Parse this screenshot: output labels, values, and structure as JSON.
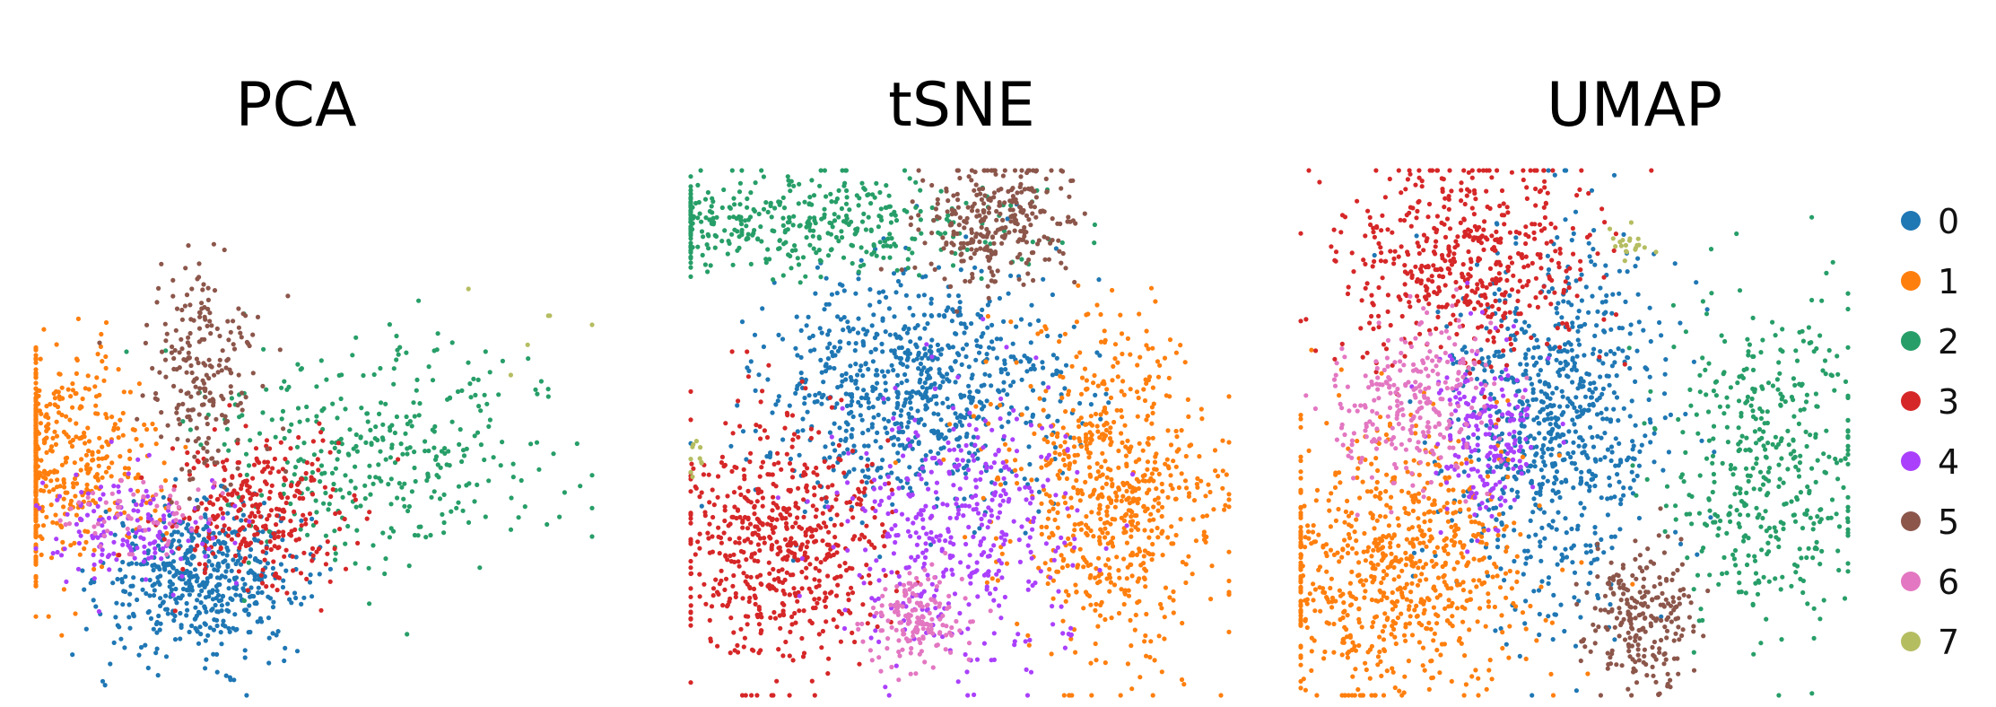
{
  "chart_data": [
    {
      "type": "scatter",
      "title": "PCA",
      "xlabel": "",
      "ylabel": "",
      "grid": false,
      "legend": "right",
      "clusters": [
        {
          "label": "0",
          "center": [
            0.3,
            0.22
          ],
          "spread": [
            0.09,
            0.07
          ],
          "n": 520
        },
        {
          "label": "1",
          "center": [
            0.02,
            0.45
          ],
          "spread": [
            0.1,
            0.1
          ],
          "n": 560
        },
        {
          "label": "2",
          "center": [
            0.62,
            0.47
          ],
          "spread": [
            0.17,
            0.11
          ],
          "n": 360
        },
        {
          "label": "3",
          "center": [
            0.4,
            0.35
          ],
          "spread": [
            0.08,
            0.07
          ],
          "n": 300
        },
        {
          "label": "4",
          "center": [
            0.16,
            0.32
          ],
          "spread": [
            0.08,
            0.05
          ],
          "n": 150
        },
        {
          "label": "5",
          "center": [
            0.3,
            0.62
          ],
          "spread": [
            0.05,
            0.1
          ],
          "n": 220
        },
        {
          "label": "6",
          "center": [
            0.18,
            0.34
          ],
          "spread": [
            0.06,
            0.04
          ],
          "n": 60
        },
        {
          "label": "7",
          "center": [
            0.92,
            0.7
          ],
          "spread": [
            0.06,
            0.06
          ],
          "n": 6
        }
      ]
    },
    {
      "type": "scatter",
      "title": "tSNE",
      "xlabel": "",
      "ylabel": "",
      "grid": false,
      "legend": "right",
      "clusters": [
        {
          "label": "0",
          "center": [
            0.42,
            0.58
          ],
          "spread": [
            0.14,
            0.11
          ],
          "n": 780
        },
        {
          "label": "1",
          "center": [
            0.78,
            0.38
          ],
          "spread": [
            0.1,
            0.16
          ],
          "n": 700
        },
        {
          "label": "2",
          "center": [
            0.2,
            0.9
          ],
          "spread": [
            0.2,
            0.05
          ],
          "n": 420
        },
        {
          "label": "3",
          "center": [
            0.16,
            0.28
          ],
          "spread": [
            0.1,
            0.12
          ],
          "n": 600
        },
        {
          "label": "4",
          "center": [
            0.5,
            0.3
          ],
          "spread": [
            0.11,
            0.13
          ],
          "n": 420
        },
        {
          "label": "5",
          "center": [
            0.57,
            0.9
          ],
          "spread": [
            0.07,
            0.06
          ],
          "n": 300
        },
        {
          "label": "6",
          "center": [
            0.42,
            0.14
          ],
          "spread": [
            0.05,
            0.05
          ],
          "n": 160
        },
        {
          "label": "7",
          "center": [
            0.01,
            0.45
          ],
          "spread": [
            0.01,
            0.02
          ],
          "n": 10
        }
      ]
    },
    {
      "type": "scatter",
      "title": "UMAP",
      "xlabel": "",
      "ylabel": "",
      "grid": false,
      "legend": "right",
      "clusters": [
        {
          "label": "0",
          "center": [
            0.46,
            0.52
          ],
          "spread": [
            0.1,
            0.18
          ],
          "n": 780
        },
        {
          "label": "1",
          "center": [
            0.17,
            0.24
          ],
          "spread": [
            0.13,
            0.13
          ],
          "n": 760
        },
        {
          "label": "2",
          "center": [
            0.85,
            0.44
          ],
          "spread": [
            0.09,
            0.16
          ],
          "n": 440
        },
        {
          "label": "3",
          "center": [
            0.3,
            0.83
          ],
          "spread": [
            0.11,
            0.1
          ],
          "n": 520
        },
        {
          "label": "4",
          "center": [
            0.34,
            0.5
          ],
          "spread": [
            0.05,
            0.08
          ],
          "n": 200
        },
        {
          "label": "5",
          "center": [
            0.63,
            0.15
          ],
          "spread": [
            0.05,
            0.07
          ],
          "n": 240
        },
        {
          "label": "6",
          "center": [
            0.21,
            0.56
          ],
          "spread": [
            0.07,
            0.08
          ],
          "n": 260
        },
        {
          "label": "7",
          "center": [
            0.6,
            0.86
          ],
          "spread": [
            0.02,
            0.02
          ],
          "n": 20
        }
      ]
    }
  ],
  "legend": {
    "items": [
      {
        "label": "0",
        "color": "#1f77b4"
      },
      {
        "label": "1",
        "color": "#ff7f0e"
      },
      {
        "label": "2",
        "color": "#279e68"
      },
      {
        "label": "3",
        "color": "#d62728"
      },
      {
        "label": "4",
        "color": "#aa40fc"
      },
      {
        "label": "5",
        "color": "#8c564b"
      },
      {
        "label": "6",
        "color": "#e377c2"
      },
      {
        "label": "7",
        "color": "#b5bd61"
      }
    ]
  }
}
